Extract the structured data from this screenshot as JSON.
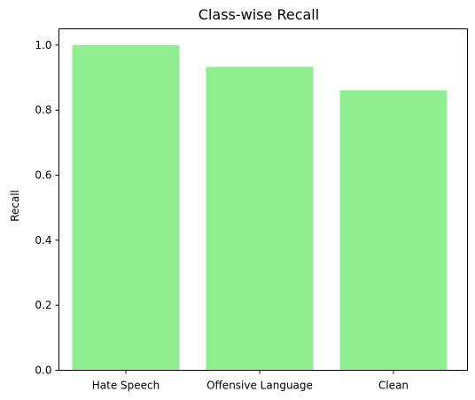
{
  "chart_data": {
    "type": "bar",
    "title": "Class-wise Recall",
    "xlabel": "",
    "ylabel": "Recall",
    "categories": [
      "Hate Speech",
      "Offensive Language",
      "Clean"
    ],
    "values": [
      1.0,
      0.933,
      0.861
    ],
    "ylim": [
      0,
      1.05
    ],
    "yticks": [
      0.0,
      0.2,
      0.4,
      0.6,
      0.8,
      1.0
    ],
    "ytick_labels": [
      "0.0",
      "0.2",
      "0.4",
      "0.6",
      "0.8",
      "1.0"
    ],
    "bar_color": "#90ee90",
    "grid": false,
    "legend": "none"
  }
}
